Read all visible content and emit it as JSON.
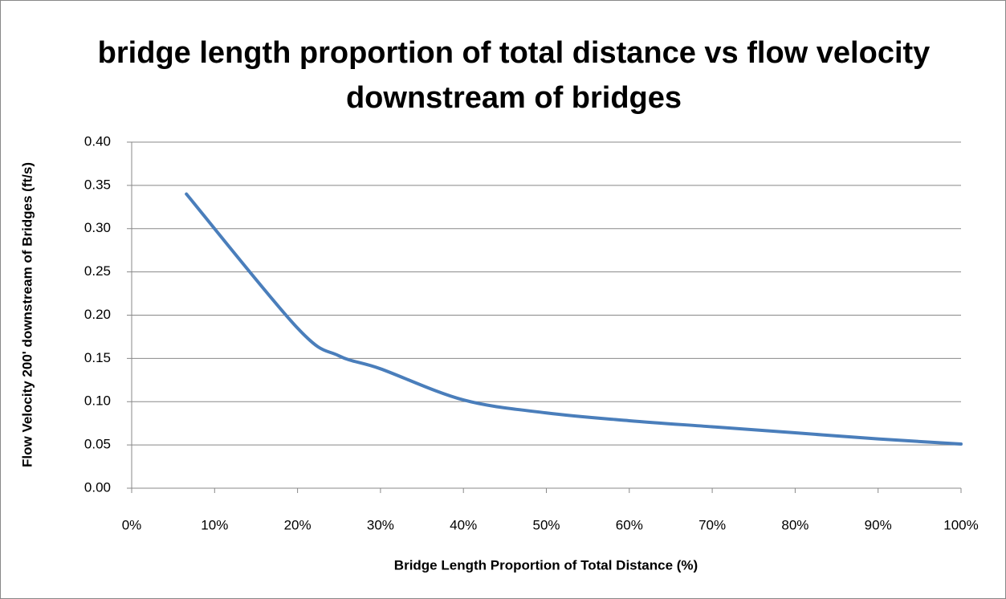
{
  "chart_data": {
    "type": "line",
    "title": "bridge length proportion of total distance vs flow velocity downstream of bridges",
    "x_label": "Bridge Length Proportion of Total Distance (%)",
    "y_label": "Flow Velocity 200' downstream of Bridges (ft/s)",
    "x": [
      6.6,
      20,
      25,
      30,
      40,
      50,
      60,
      70,
      80,
      90,
      100
    ],
    "series": [
      {
        "color": "#4a7ebb",
        "values": [
          0.34,
          0.185,
          0.153,
          0.138,
          0.102,
          0.087,
          0.078,
          0.071,
          0.064,
          0.057,
          0.051
        ]
      }
    ],
    "xlim": [
      0,
      100
    ],
    "xticks": [
      {
        "value": 0,
        "label": "0%"
      },
      {
        "value": 10,
        "label": "10%"
      },
      {
        "value": 20,
        "label": "20%"
      },
      {
        "value": 30,
        "label": "30%"
      },
      {
        "value": 40,
        "label": "40%"
      },
      {
        "value": 50,
        "label": "50%"
      },
      {
        "value": 60,
        "label": "60%"
      },
      {
        "value": 70,
        "label": "70%"
      },
      {
        "value": 80,
        "label": "80%"
      },
      {
        "value": 90,
        "label": "90%"
      },
      {
        "value": 100,
        "label": "100%"
      }
    ],
    "ylim": [
      0,
      0.4
    ],
    "yticks": [
      {
        "value": 0,
        "label": "0.00"
      },
      {
        "value": 0.05,
        "label": "0.05"
      },
      {
        "value": 0.1,
        "label": "0.10"
      },
      {
        "value": 0.15,
        "label": "0.15"
      },
      {
        "value": 0.2,
        "label": "0.20"
      },
      {
        "value": 0.25,
        "label": "0.25"
      },
      {
        "value": 0.3,
        "label": "0.30"
      },
      {
        "value": 0.35,
        "label": "0.35"
      },
      {
        "value": 0.4,
        "label": "0.40"
      }
    ],
    "grid": true,
    "smooth": true
  }
}
